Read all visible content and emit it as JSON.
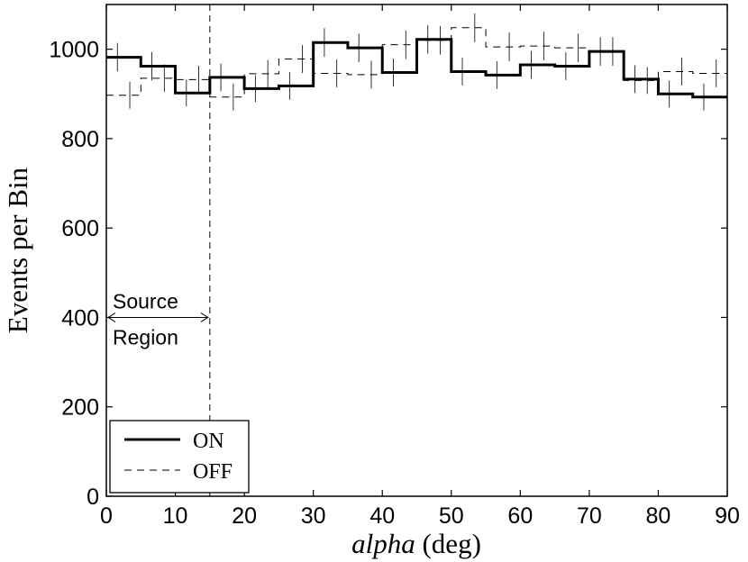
{
  "chart_data": {
    "type": "line",
    "title": "",
    "xlabel_italic": "alpha",
    "xlabel_rest": " (deg)",
    "ylabel": "Events per Bin",
    "xlim": [
      0,
      90
    ],
    "ylim": [
      0,
      1100
    ],
    "xticks": [
      0,
      10,
      20,
      30,
      40,
      50,
      60,
      70,
      80,
      90
    ],
    "yticks": [
      0,
      200,
      400,
      600,
      800,
      1000
    ],
    "grid": false,
    "legend_position": "bottom-left",
    "bin_edges": [
      0,
      5,
      10,
      15,
      20,
      25,
      30,
      35,
      40,
      45,
      50,
      55,
      60,
      65,
      70,
      75,
      80,
      85,
      90
    ],
    "series": [
      {
        "name": "ON",
        "style": "solid-thick",
        "values": [
          982,
          962,
          902,
          937,
          912,
          918,
          1015,
          1003,
          948,
          1022,
          950,
          942,
          965,
          962,
          995,
          933,
          900,
          893
        ],
        "errors": [
          32,
          32,
          30,
          31,
          30,
          31,
          32,
          32,
          31,
          32,
          31,
          31,
          31,
          31,
          32,
          31,
          30,
          30
        ]
      },
      {
        "name": "OFF",
        "style": "dashed-thin",
        "values": [
          897,
          935,
          932,
          893,
          945,
          978,
          946,
          943,
          1010,
          1020,
          1048,
          1005,
          1007,
          1003,
          995,
          930,
          950,
          946
        ],
        "errors": [
          30,
          31,
          31,
          30,
          31,
          31,
          31,
          31,
          32,
          32,
          32,
          32,
          32,
          32,
          32,
          30,
          31,
          31
        ]
      }
    ],
    "annotations": {
      "source_region_cut": 15,
      "source_region_arrow_y": 400,
      "source_region_label_line1": "Source",
      "source_region_label_line2": "Region"
    }
  }
}
